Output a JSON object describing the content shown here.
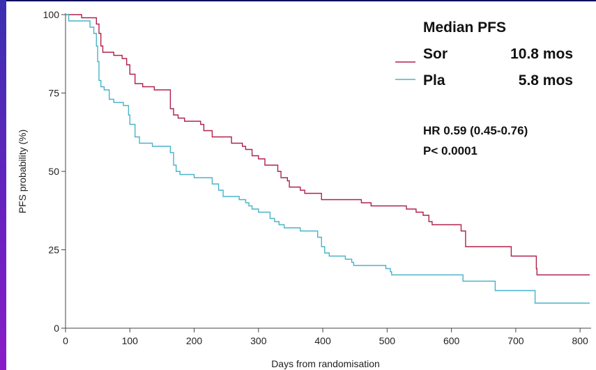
{
  "chart_data": {
    "type": "line",
    "xlabel": "Days from randomisation",
    "ylabel": "PFS probability (%)",
    "xlim": [
      0,
      815
    ],
    "ylim": [
      0,
      100
    ],
    "xticks": [
      0,
      100,
      200,
      300,
      400,
      500,
      600,
      700,
      800
    ],
    "yticks": [
      0,
      25,
      50,
      75,
      100
    ],
    "annotations": {
      "median_title": "Median PFS",
      "sor_label": "Sor",
      "sor_value": "10.8 mos",
      "pla_label": "Pla",
      "pla_value": "5.8 mos",
      "hr": "HR 0.59 (0.45-0.76)",
      "p": "P< 0.0001"
    },
    "series": [
      {
        "name": "Sor",
        "color": "#b0204a",
        "step_points": [
          [
            0,
            100
          ],
          [
            25,
            100
          ],
          [
            25,
            99
          ],
          [
            45,
            99
          ],
          [
            48,
            97
          ],
          [
            52,
            94
          ],
          [
            55,
            90
          ],
          [
            58,
            88
          ],
          [
            75,
            87
          ],
          [
            88,
            86
          ],
          [
            95,
            84
          ],
          [
            100,
            81
          ],
          [
            108,
            78
          ],
          [
            120,
            77
          ],
          [
            135,
            77
          ],
          [
            138,
            76
          ],
          [
            158,
            76
          ],
          [
            163,
            70
          ],
          [
            168,
            68
          ],
          [
            175,
            67
          ],
          [
            185,
            66
          ],
          [
            210,
            65
          ],
          [
            215,
            63
          ],
          [
            228,
            61
          ],
          [
            255,
            61
          ],
          [
            258,
            59
          ],
          [
            275,
            58
          ],
          [
            280,
            57
          ],
          [
            290,
            55
          ],
          [
            300,
            54
          ],
          [
            310,
            52
          ],
          [
            330,
            50
          ],
          [
            335,
            48
          ],
          [
            345,
            47
          ],
          [
            348,
            45
          ],
          [
            365,
            44
          ],
          [
            372,
            43
          ],
          [
            398,
            41
          ],
          [
            455,
            41
          ],
          [
            460,
            40
          ],
          [
            475,
            39
          ],
          [
            530,
            38
          ],
          [
            545,
            37
          ],
          [
            556,
            36
          ],
          [
            565,
            34
          ],
          [
            570,
            33
          ],
          [
            605,
            33
          ],
          [
            615,
            31
          ],
          [
            622,
            26
          ],
          [
            690,
            26
          ],
          [
            693,
            23
          ],
          [
            728,
            23
          ],
          [
            732,
            19
          ],
          [
            733,
            17
          ],
          [
            815,
            17
          ]
        ]
      },
      {
        "name": "Pla",
        "color": "#49b3c9",
        "step_points": [
          [
            0,
            100
          ],
          [
            5,
            98
          ],
          [
            25,
            98
          ],
          [
            38,
            96
          ],
          [
            44,
            94
          ],
          [
            48,
            90
          ],
          [
            50,
            85
          ],
          [
            52,
            79
          ],
          [
            55,
            77
          ],
          [
            60,
            76
          ],
          [
            68,
            73
          ],
          [
            75,
            72
          ],
          [
            90,
            71
          ],
          [
            98,
            68
          ],
          [
            100,
            65
          ],
          [
            108,
            61
          ],
          [
            115,
            59
          ],
          [
            130,
            59
          ],
          [
            135,
            58
          ],
          [
            160,
            58
          ],
          [
            163,
            56
          ],
          [
            168,
            52
          ],
          [
            172,
            50
          ],
          [
            178,
            49
          ],
          [
            195,
            49
          ],
          [
            200,
            48
          ],
          [
            222,
            48
          ],
          [
            228,
            46
          ],
          [
            238,
            44
          ],
          [
            245,
            42
          ],
          [
            270,
            41
          ],
          [
            280,
            40
          ],
          [
            285,
            39
          ],
          [
            290,
            38
          ],
          [
            300,
            37
          ],
          [
            318,
            35
          ],
          [
            325,
            34
          ],
          [
            332,
            33
          ],
          [
            340,
            32
          ],
          [
            360,
            32
          ],
          [
            365,
            31
          ],
          [
            385,
            31
          ],
          [
            392,
            29
          ],
          [
            398,
            26
          ],
          [
            403,
            24
          ],
          [
            410,
            23
          ],
          [
            428,
            23
          ],
          [
            435,
            22
          ],
          [
            445,
            21
          ],
          [
            448,
            20
          ],
          [
            495,
            20
          ],
          [
            498,
            19
          ],
          [
            505,
            18
          ],
          [
            507,
            17
          ],
          [
            605,
            17
          ],
          [
            618,
            15
          ],
          [
            665,
            15
          ],
          [
            668,
            12
          ],
          [
            725,
            12
          ],
          [
            730,
            8
          ],
          [
            815,
            8
          ]
        ]
      }
    ]
  }
}
